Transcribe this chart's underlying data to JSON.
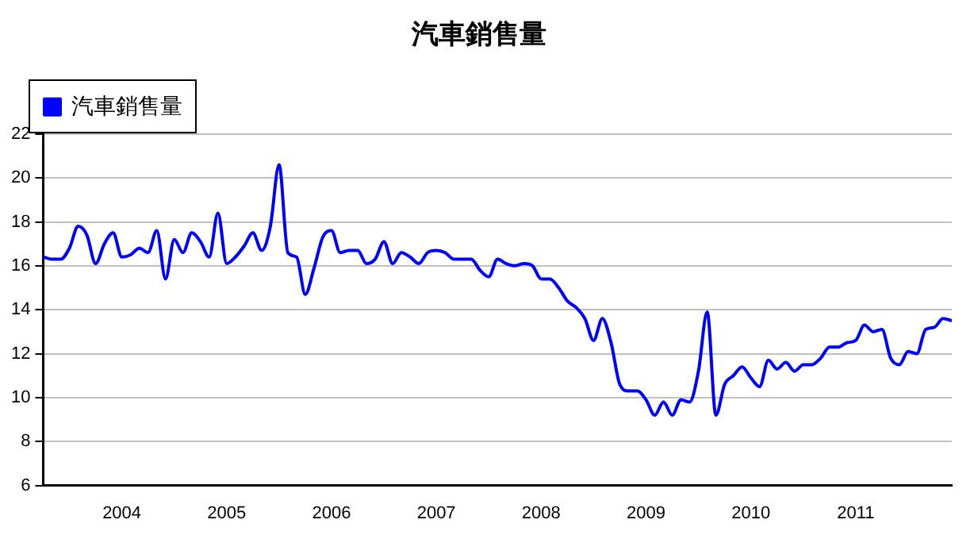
{
  "chart_data": {
    "type": "line",
    "title": "汽車銷售量",
    "x": [
      "2003-04",
      "2003-05",
      "2003-06",
      "2003-07",
      "2003-08",
      "2003-09",
      "2003-10",
      "2003-11",
      "2003-12",
      "2004-01",
      "2004-02",
      "2004-03",
      "2004-04",
      "2004-05",
      "2004-06",
      "2004-07",
      "2004-08",
      "2004-09",
      "2004-10",
      "2004-11",
      "2004-12",
      "2005-01",
      "2005-02",
      "2005-03",
      "2005-04",
      "2005-05",
      "2005-06",
      "2005-07",
      "2005-08",
      "2005-09",
      "2005-10",
      "2005-11",
      "2005-12",
      "2006-01",
      "2006-02",
      "2006-03",
      "2006-04",
      "2006-05",
      "2006-06",
      "2006-07",
      "2006-08",
      "2006-09",
      "2006-10",
      "2006-11",
      "2006-12",
      "2007-01",
      "2007-02",
      "2007-03",
      "2007-04",
      "2007-05",
      "2007-06",
      "2007-07",
      "2007-08",
      "2007-09",
      "2007-10",
      "2007-11",
      "2007-12",
      "2008-01",
      "2008-02",
      "2008-03",
      "2008-04",
      "2008-05",
      "2008-06",
      "2008-07",
      "2008-08",
      "2008-09",
      "2008-10",
      "2008-11",
      "2008-12",
      "2009-01",
      "2009-02",
      "2009-03",
      "2009-04",
      "2009-05",
      "2009-06",
      "2009-07",
      "2009-08",
      "2009-09",
      "2009-10",
      "2009-11",
      "2009-12",
      "2010-01",
      "2010-02",
      "2010-03",
      "2010-04",
      "2010-05",
      "2010-06",
      "2010-07",
      "2010-08",
      "2010-09",
      "2010-10",
      "2010-11",
      "2010-12",
      "2011-01",
      "2011-02",
      "2011-03",
      "2011-04",
      "2011-05",
      "2011-06",
      "2011-07",
      "2011-08",
      "2011-09",
      "2011-10",
      "2011-11",
      "2011-12"
    ],
    "series": [
      {
        "name": "汽車銷售量",
        "color": "#0000ff",
        "values": [
          16.4,
          16.3,
          16.3,
          16.8,
          17.8,
          17.4,
          16.1,
          17.0,
          17.5,
          16.4,
          16.5,
          16.8,
          16.6,
          17.6,
          15.4,
          17.2,
          16.6,
          17.5,
          17.1,
          16.4,
          18.4,
          16.1,
          16.4,
          16.9,
          17.5,
          16.7,
          17.8,
          20.6,
          16.6,
          16.4,
          14.7,
          15.9,
          17.3,
          17.6,
          16.6,
          16.7,
          16.7,
          16.1,
          16.3,
          17.1,
          16.1,
          16.6,
          16.4,
          16.1,
          16.6,
          16.7,
          16.6,
          16.3,
          16.3,
          16.3,
          15.8,
          15.5,
          16.3,
          16.1,
          16.0,
          16.1,
          16.0,
          15.4,
          15.4,
          15.0,
          14.4,
          14.1,
          13.6,
          12.6,
          13.6,
          12.5,
          10.6,
          10.3,
          10.3,
          9.9,
          9.2,
          9.8,
          9.2,
          9.9,
          9.8,
          11.2,
          13.9,
          9.2,
          10.6,
          11.0,
          11.4,
          10.9,
          10.5,
          11.7,
          11.3,
          11.6,
          11.2,
          11.5,
          11.5,
          11.8,
          12.3,
          12.3,
          12.5,
          12.6,
          13.3,
          13.0,
          13.1,
          11.8,
          11.5,
          12.1,
          12.0,
          13.1,
          13.2,
          13.6,
          13.5
        ]
      }
    ],
    "xlim": [
      "2003-04",
      "2011-12"
    ],
    "xticks": [
      {
        "value": "2004",
        "label": "2004"
      },
      {
        "value": "2005",
        "label": "2005"
      },
      {
        "value": "2006",
        "label": "2006"
      },
      {
        "value": "2007",
        "label": "2007"
      },
      {
        "value": "2008",
        "label": "2008"
      },
      {
        "value": "2009",
        "label": "2009"
      },
      {
        "value": "2010",
        "label": "2010"
      },
      {
        "value": "2011",
        "label": "2011"
      }
    ],
    "ylim": [
      6,
      22
    ],
    "yticks": [
      6,
      8,
      10,
      12,
      14,
      16,
      18,
      20,
      22
    ],
    "grid": "y",
    "legend": "top left",
    "marker": "none",
    "line_style": "solid"
  }
}
